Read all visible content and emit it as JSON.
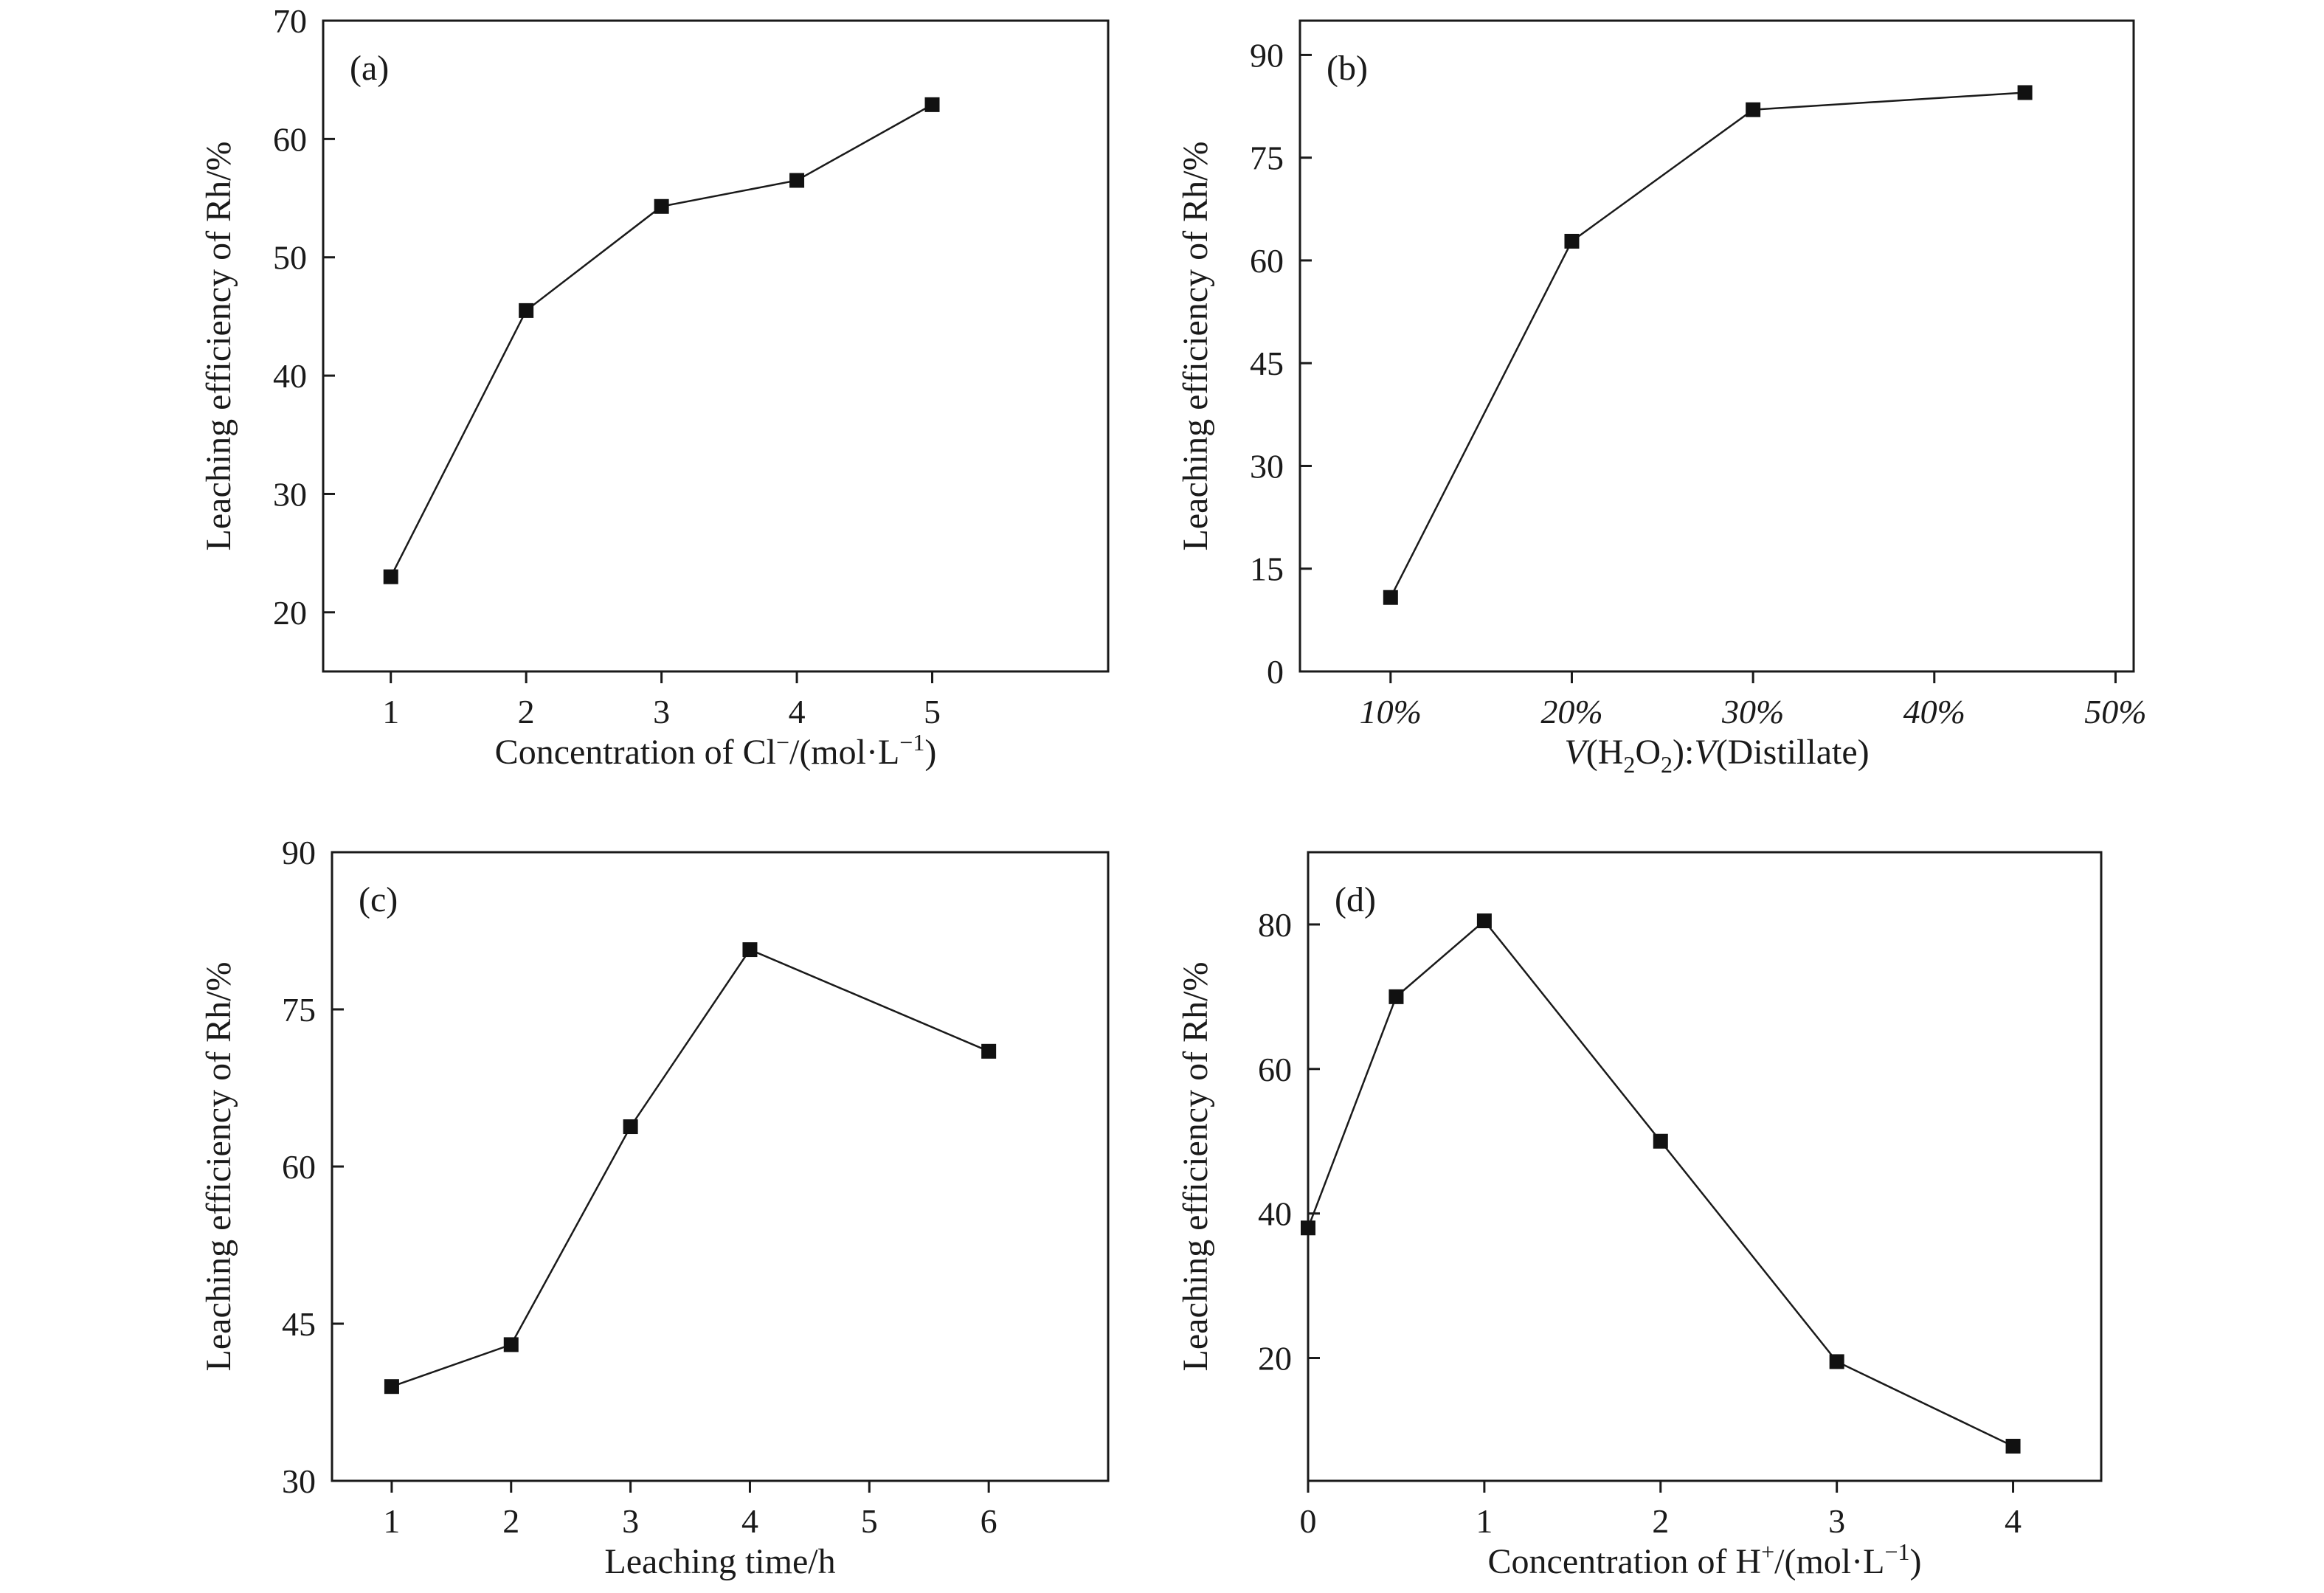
{
  "colors": {
    "ink": "#1a1a1a",
    "marker": "#111111",
    "background": "#ffffff"
  },
  "chart_data": [
    {
      "type": "line",
      "panel_label": "(a)",
      "xlabel_parts": [
        "Concentration of Cl",
        "−",
        "/(mol·L",
        "−1",
        ")"
      ],
      "ylabel": "Leaching efficiency of Rh/%",
      "x": [
        1,
        2,
        3,
        4,
        5
      ],
      "y": [
        23,
        45.5,
        54.3,
        56.5,
        62.9
      ],
      "xlim": [
        0.5,
        6.3
      ],
      "ylim": [
        15,
        70
      ],
      "xticks": [
        1,
        2,
        3,
        4,
        5
      ],
      "xtick_labels": [
        "1",
        "2",
        "3",
        "4",
        "5"
      ],
      "yticks": [
        20,
        30,
        40,
        50,
        60,
        70
      ],
      "ytick_labels": [
        "20",
        "30",
        "40",
        "50",
        "60",
        "70"
      ],
      "marker": "square",
      "grid": false
    },
    {
      "type": "line",
      "panel_label": "(b)",
      "xlabel_parts": [
        "V",
        "(H",
        "2",
        "O",
        "2",
        "):",
        "V",
        "(Distillate)"
      ],
      "ylabel": "Leaching efficiency of Rh/%",
      "x": [
        10,
        20,
        30,
        45
      ],
      "y": [
        10.8,
        62.8,
        82,
        84.5
      ],
      "xlim": [
        5,
        51
      ],
      "ylim": [
        0,
        95
      ],
      "xticks": [
        10,
        20,
        30,
        40,
        50
      ],
      "xtick_labels": [
        "10%",
        "20%",
        "30%",
        "40%",
        "50%"
      ],
      "yticks": [
        0,
        15,
        30,
        45,
        60,
        75,
        90
      ],
      "ytick_labels": [
        "0",
        "15",
        "30",
        "45",
        "60",
        "75",
        "90"
      ],
      "marker": "square",
      "grid": false
    },
    {
      "type": "line",
      "panel_label": "(c)",
      "xlabel_parts": [
        "Leaching time/h"
      ],
      "ylabel": "Leaching efficiency of Rh/%",
      "x": [
        1,
        2,
        3,
        4,
        6
      ],
      "y": [
        39,
        43,
        63.8,
        80.7,
        71
      ],
      "xlim": [
        0.5,
        7
      ],
      "ylim": [
        30,
        90
      ],
      "xticks": [
        1,
        2,
        3,
        4,
        5,
        6
      ],
      "xtick_labels": [
        "1",
        "2",
        "3",
        "4",
        "5",
        "6"
      ],
      "yticks": [
        30,
        45,
        60,
        75,
        90
      ],
      "ytick_labels": [
        "30",
        "45",
        "60",
        "75",
        "90"
      ],
      "marker": "square",
      "grid": false
    },
    {
      "type": "line",
      "panel_label": "(d)",
      "xlabel_parts": [
        "Concentration of H",
        "+",
        "/(mol·L",
        "−1",
        ")"
      ],
      "ylabel": "Leaching efficiency of Rh/%",
      "x": [
        0,
        0.5,
        1,
        2,
        3,
        4
      ],
      "y": [
        38,
        70,
        80.5,
        50,
        19.5,
        7.8
      ],
      "xlim": [
        0,
        4.5
      ],
      "ylim": [
        3,
        90
      ],
      "xticks": [
        0,
        1,
        2,
        3,
        4
      ],
      "xtick_labels": [
        "0",
        "1",
        "2",
        "3",
        "4"
      ],
      "yticks": [
        20,
        40,
        60,
        80
      ],
      "ytick_labels": [
        "20",
        "40",
        "60",
        "80"
      ],
      "marker": "square",
      "grid": false
    }
  ]
}
